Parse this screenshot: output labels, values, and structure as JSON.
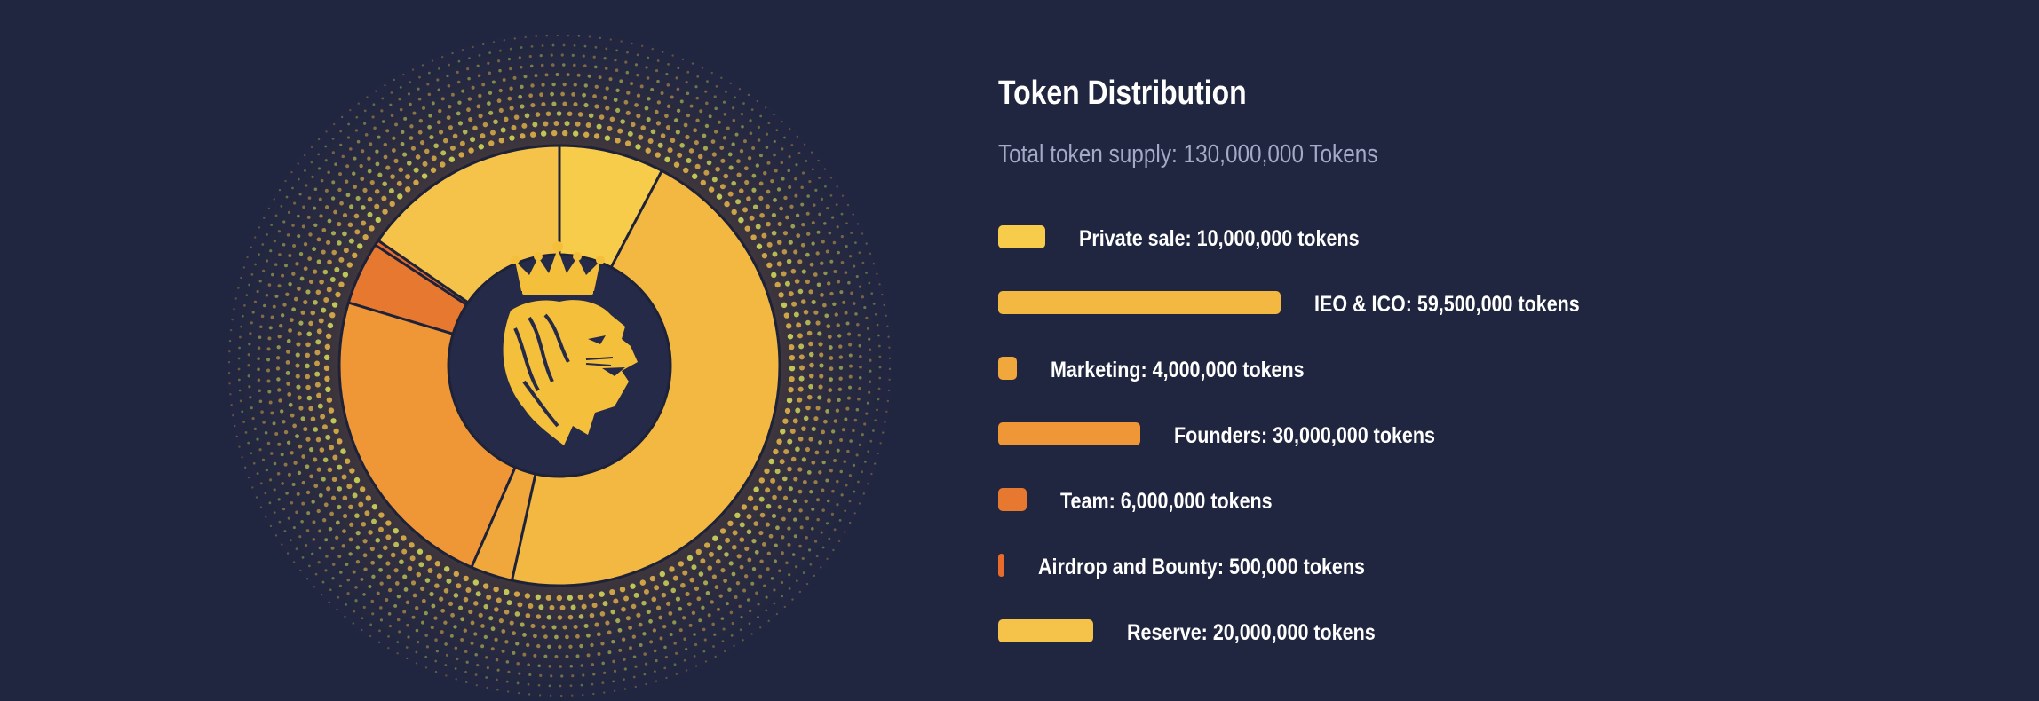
{
  "title": "Token Distribution",
  "subtitle": "Total token supply: 130,000,000 Tokens",
  "logo": "crowned-lion-head-logo",
  "colors": {
    "background": "#212640",
    "inner_circle": "#252a48",
    "divider": "#1e2238"
  },
  "chart_data": {
    "type": "pie",
    "total": 130000000,
    "categories": [
      "Private sale",
      "IEO & ICO",
      "Marketing",
      "Founders",
      "Team",
      "Airdrop and Bounty",
      "Reserve"
    ],
    "values": [
      10000000,
      59500000,
      4000000,
      30000000,
      6000000,
      500000,
      20000000
    ],
    "colors": [
      "#f6cc4a",
      "#f3b842",
      "#f0a83c",
      "#ef9636",
      "#e6782f",
      "#e86b2c",
      "#f5c34a"
    ],
    "labels": [
      "Private sale: 10,000,000 tokens",
      "IEO & ICO: 59,500,000 tokens",
      "Marketing: 4,000,000 tokens",
      "Founders: 30,000,000 tokens",
      "Team: 6,000,000 tokens",
      "Airdrop and Bounty: 500,000 tokens",
      "Reserve: 20,000,000 tokens"
    ],
    "legend_placement": "right"
  }
}
